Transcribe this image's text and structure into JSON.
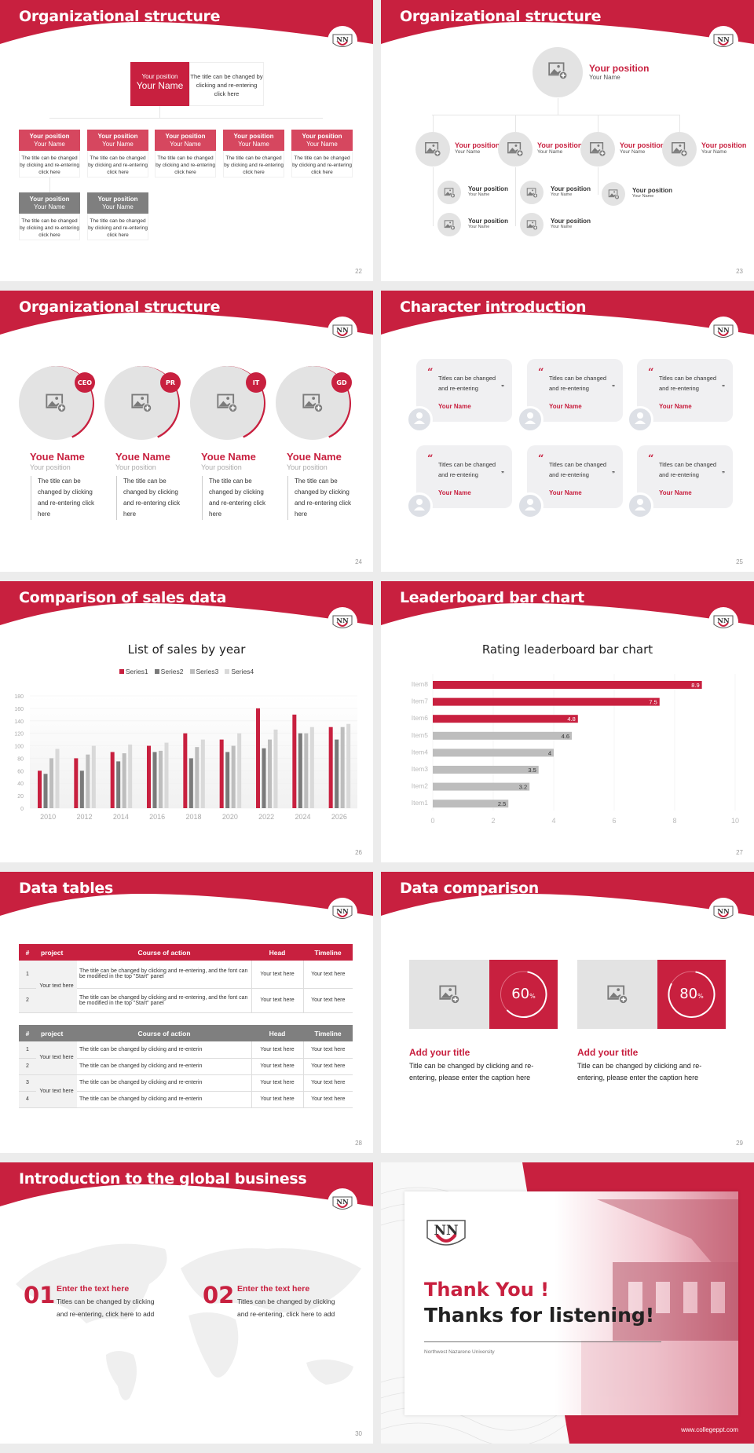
{
  "brand": {
    "primary": "#c8203f",
    "gray": "#7a7a7a",
    "light_gray": "#e3e3e3"
  },
  "slides": {
    "s22": {
      "title": "Organizational structure",
      "page": "22",
      "top": {
        "position": "Your position",
        "name": "Your Name",
        "desc": "The title can be changed by clicking and re-entering click here"
      },
      "boxes": [
        {
          "position": "Your position",
          "name": "Your Name",
          "desc": "The title can be changed by clicking and re-entering click here"
        },
        {
          "position": "Your position",
          "name": "Your Name",
          "desc": "The title can be changed by clicking and re-entering click here"
        },
        {
          "position": "Your position",
          "name": "Your Name",
          "desc": "The title can be changed by clicking and re-entering click here"
        },
        {
          "position": "Your position",
          "name": "Your Name",
          "desc": "The title can be changed by clicking and re-entering click here"
        },
        {
          "position": "Your position",
          "name": "Your Name",
          "desc": "The title can be changed by clicking and re-entering click here"
        },
        {
          "position": "Your position",
          "name": "Your Name",
          "desc": "The title can be changed by clicking and re-entering click here"
        },
        {
          "position": "Your position",
          "name": "Your Name",
          "desc": "The title can be changed by clicking and re-entering click here"
        }
      ]
    },
    "s23": {
      "title": "Organizational structure",
      "page": "23",
      "top": {
        "position": "Your position",
        "name": "Your Name"
      },
      "level2": [
        {
          "position": "Your position",
          "name": "Your Name"
        },
        {
          "position": "Your position",
          "name": "Your Name"
        },
        {
          "position": "Your position",
          "name": "Your Name"
        },
        {
          "position": "Your position",
          "name": "Your Name"
        }
      ],
      "level3": [
        {
          "position": "Your position",
          "name": "Your Name"
        },
        {
          "position": "Your position",
          "name": "Your Name"
        },
        {
          "position": "Your position",
          "name": "Your Name"
        },
        {
          "position": "Your position",
          "name": "Your Name"
        },
        {
          "position": "Your position",
          "name": "Your Name"
        }
      ]
    },
    "s24": {
      "title": "Organizational structure",
      "page": "24",
      "people": [
        {
          "tag": "CEO",
          "name": "Youe Name",
          "position": "Your position",
          "desc": "The title can be changed by clicking and re-entering click here"
        },
        {
          "tag": "PR",
          "name": "Youe Name",
          "position": "Your position",
          "desc": "The title can be changed by clicking and re-entering click here"
        },
        {
          "tag": "IT",
          "name": "Youe Name",
          "position": "Your position",
          "desc": "The title can be changed by clicking and re-entering click here"
        },
        {
          "tag": "GD",
          "name": "Youe Name",
          "position": "Your position",
          "desc": "The title can be changed by clicking and re-entering click here"
        }
      ]
    },
    "s25": {
      "title": "Character introduction",
      "page": "25",
      "cards": [
        {
          "quote": "Titles can be changed and re-entering",
          "name": "Your Name"
        },
        {
          "quote": "Titles can be changed and re-entering",
          "name": "Your Name"
        },
        {
          "quote": "Titles can be changed and re-entering",
          "name": "Your Name"
        },
        {
          "quote": "Titles can be changed and re-entering",
          "name": "Your Name"
        },
        {
          "quote": "Titles can be changed and re-entering",
          "name": "Your Name"
        },
        {
          "quote": "Titles can be changed and re-entering",
          "name": "Your Name"
        }
      ],
      "open_quote": "“",
      "close_quote": "”"
    },
    "s26": {
      "title": "Comparison of sales data",
      "page": "26"
    },
    "s27": {
      "title": "Leaderboard bar chart",
      "page": "27"
    },
    "s28": {
      "title": "Data tables",
      "page": "28",
      "headers": [
        "#",
        "project",
        "Course of action",
        "Head",
        "Timeline"
      ],
      "table1": {
        "project": "Your text here",
        "rows": [
          {
            "n": "1",
            "action": "The title can be changed by clicking and re-entering, and the font can be modified in the top \"Start\" panel",
            "head": "Your text here",
            "timeline": "Your text here"
          },
          {
            "n": "2",
            "action": "The title can be changed by clicking and re-entering, and the font can be modified in the top \"Start\" panel",
            "head": "Your text here",
            "timeline": "Your text here"
          }
        ]
      },
      "table2": {
        "projects": [
          "Your text here",
          "Your text here"
        ],
        "rows": [
          {
            "n": "1",
            "action": "The title can be changed by clicking and re-enterin",
            "head": "Your text here",
            "timeline": "Your text here"
          },
          {
            "n": "2",
            "action": "The title can be changed by clicking and re-enterin",
            "head": "Your text here",
            "timeline": "Your text here"
          },
          {
            "n": "3",
            "action": "The title can be changed by clicking and re-enterin",
            "head": "Your text here",
            "timeline": "Your text here"
          },
          {
            "n": "4",
            "action": "The title can be changed by clicking and re-enterin",
            "head": "Your text here",
            "timeline": "Your text here"
          }
        ]
      }
    },
    "s29": {
      "title": "Data comparison",
      "page": "29",
      "items": [
        {
          "percent": "60",
          "unit": "%",
          "value": 60,
          "heading": "Add your title",
          "desc": "Title can be changed by clicking and re-entering, please enter the caption here"
        },
        {
          "percent": "80",
          "unit": "%",
          "value": 80,
          "heading": "Add your title",
          "desc": "Title can be changed by clicking and re-entering, please enter the caption here"
        }
      ]
    },
    "s30": {
      "title": "Introduction to the global business",
      "page": "30",
      "items": [
        {
          "num": "01",
          "heading": "Enter the text here",
          "desc": "Titles can be changed by clicking and re-entering, click here to add"
        },
        {
          "num": "02",
          "heading": "Enter the text here",
          "desc": "Titles can be changed by clicking and re-entering, click here to add"
        }
      ]
    },
    "s31": {
      "thank": "Thank You !",
      "thanks": "Thanks for listening!",
      "university": "Northwest Nazarene University",
      "url": "www.collegeppt.com"
    }
  },
  "chart_data": [
    {
      "type": "bar",
      "title": "List of sales by year",
      "categories": [
        "2010",
        "2012",
        "2014",
        "2016",
        "2018",
        "2020",
        "2022",
        "2024",
        "2026"
      ],
      "series": [
        {
          "name": "Series1",
          "color": "#c8203f",
          "values": [
            60,
            80,
            90,
            100,
            120,
            110,
            160,
            150,
            130
          ]
        },
        {
          "name": "Series2",
          "color": "#7a7a7a",
          "values": [
            55,
            60,
            75,
            90,
            80,
            90,
            96,
            120,
            110
          ]
        },
        {
          "name": "Series3",
          "color": "#bdbdbd",
          "values": [
            80,
            86,
            88,
            92,
            98,
            100,
            110,
            120,
            130
          ]
        },
        {
          "name": "Series4",
          "color": "#d9d9d9",
          "values": [
            95,
            100,
            102,
            105,
            110,
            120,
            126,
            130,
            135
          ]
        }
      ],
      "xlabel": "",
      "ylabel": "",
      "ylim": [
        0,
        180
      ],
      "yticks": [
        0,
        20,
        40,
        60,
        80,
        100,
        120,
        140,
        160,
        180
      ],
      "legend_position": "top",
      "grid": true
    },
    {
      "type": "bar",
      "orientation": "horizontal",
      "title": "Rating leaderboard bar chart",
      "categories": [
        "Item8",
        "Item7",
        "Item6",
        "Item5",
        "Item4",
        "Item3",
        "Item2",
        "Item1"
      ],
      "values": [
        8.9,
        7.5,
        4.8,
        4.6,
        4,
        3.5,
        3.2,
        2.5
      ],
      "labels": [
        "8.9",
        "7.5",
        "4.8",
        "4.6",
        "4",
        "3.5",
        "3.2",
        "2.5"
      ],
      "colors": [
        "#c8203f",
        "#c8203f",
        "#c8203f",
        "#bdbdbd",
        "#bdbdbd",
        "#bdbdbd",
        "#bdbdbd",
        "#bdbdbd"
      ],
      "xlim": [
        0,
        10
      ],
      "xticks": [
        0,
        2,
        4,
        6,
        8,
        10
      ],
      "grid": true
    }
  ]
}
